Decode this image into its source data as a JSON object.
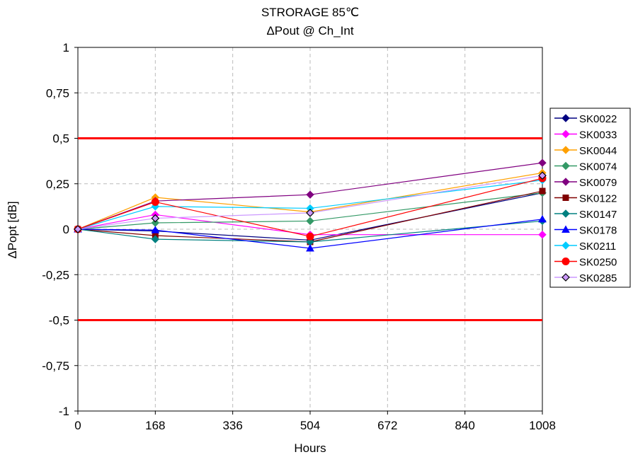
{
  "chart_data": {
    "type": "line",
    "title": "STRORAGE 85℃",
    "subtitle": "ΔPout @ Ch_Int",
    "xlabel": "Hours",
    "ylabel": "ΔPopt [dB]",
    "xlim": [
      0,
      1008
    ],
    "ylim": [
      -1,
      1
    ],
    "x_ticks": [
      0,
      168,
      336,
      504,
      672,
      840,
      1008
    ],
    "x_tick_labels": [
      "0",
      "168",
      "336",
      "504",
      "672",
      "840",
      "1008"
    ],
    "y_ticks": [
      1,
      0.75,
      0.5,
      0.25,
      0,
      -0.25,
      -0.5,
      -0.75,
      -1
    ],
    "y_tick_labels": [
      "1",
      "0,75",
      "0,5",
      "0,25",
      "0",
      "-0,25",
      "-0,5",
      "-0,75",
      "-1"
    ],
    "grid": true,
    "legend_position": "right",
    "limit_lines": [
      {
        "y": 0.5,
        "color": "#ff0000"
      },
      {
        "y": -0.5,
        "color": "#ff0000"
      }
    ],
    "x": [
      0,
      168,
      504,
      1008
    ],
    "series": [
      {
        "name": "SK0022",
        "color": "#000080",
        "marker": "diamond",
        "values": [
          0,
          -0.01,
          -0.06,
          0.2
        ]
      },
      {
        "name": "SK0033",
        "color": "#ff00ff",
        "marker": "diamond",
        "values": [
          0,
          0.08,
          -0.03,
          -0.03
        ]
      },
      {
        "name": "SK0044",
        "color": "#ffa000",
        "marker": "diamond",
        "values": [
          0,
          0.175,
          0.095,
          0.31
        ]
      },
      {
        "name": "SK0074",
        "color": "#339966",
        "marker": "diamond",
        "values": [
          0,
          0.035,
          0.045,
          0.2
        ]
      },
      {
        "name": "SK0079",
        "color": "#800080",
        "marker": "diamond",
        "values": [
          0,
          0.155,
          0.19,
          0.365
        ]
      },
      {
        "name": "SK0122",
        "color": "#800000",
        "marker": "square",
        "values": [
          0,
          -0.035,
          -0.07,
          0.21
        ]
      },
      {
        "name": "SK0147",
        "color": "#008080",
        "marker": "diamond",
        "values": [
          0,
          -0.055,
          -0.07,
          0.045
        ]
      },
      {
        "name": "SK0178",
        "color": "#0000ff",
        "marker": "triangle",
        "values": [
          0,
          -0.005,
          -0.105,
          0.055
        ]
      },
      {
        "name": "SK0211",
        "color": "#00ccff",
        "marker": "diamond",
        "values": [
          0,
          0.125,
          0.115,
          0.27
        ]
      },
      {
        "name": "SK0250",
        "color": "#ff0000",
        "marker": "circle",
        "values": [
          0,
          0.15,
          -0.04,
          0.28
        ]
      },
      {
        "name": "SK0285",
        "color": "#cc99ff",
        "marker": "diamond-outlined",
        "values": [
          0,
          0.06,
          0.09,
          0.295
        ]
      }
    ]
  }
}
